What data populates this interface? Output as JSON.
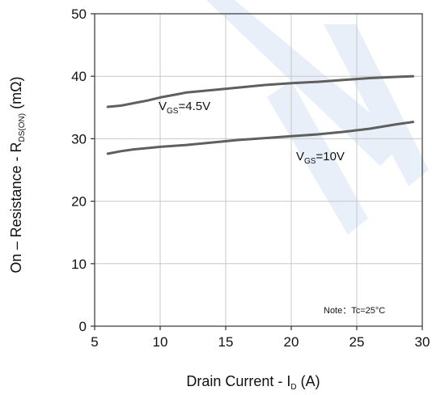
{
  "chart_data": {
    "type": "line",
    "xlabel": {
      "main": "Drain Current - I",
      "sub": "D",
      "unit": " (A)"
    },
    "ylabel": {
      "main": "On – Resistance - R",
      "sub": "DS(ON)",
      "unit": " (mΩ)"
    },
    "xlim": [
      5,
      30
    ],
    "ylim": [
      0,
      50
    ],
    "x_ticks": [
      5,
      10,
      15,
      20,
      25,
      30
    ],
    "y_ticks": [
      0,
      10,
      20,
      30,
      40,
      50
    ],
    "grid": true,
    "series": [
      {
        "label": {
          "prefix": "V",
          "sub": "GS",
          "suffix": "=4.5V"
        },
        "color": "#5f5f5f",
        "x": [
          6,
          7,
          8,
          9,
          10,
          11,
          12,
          14,
          16,
          18,
          20,
          22,
          24,
          26,
          28,
          29.3
        ],
        "y": [
          35.1,
          35.3,
          35.7,
          36.1,
          36.6,
          37.0,
          37.4,
          37.8,
          38.2,
          38.6,
          38.9,
          39.1,
          39.4,
          39.7,
          39.9,
          40.0
        ]
      },
      {
        "label": {
          "prefix": "V",
          "sub": "GS",
          "suffix": "=10V"
        },
        "color": "#5f5f5f",
        "x": [
          6,
          7,
          8,
          9,
          10,
          12,
          14,
          16,
          18,
          20,
          22,
          24,
          26,
          28,
          29.3
        ],
        "y": [
          27.6,
          28.0,
          28.3,
          28.5,
          28.7,
          29.0,
          29.4,
          29.8,
          30.1,
          30.4,
          30.7,
          31.1,
          31.6,
          32.3,
          32.7
        ]
      }
    ],
    "note": "Note：Tc=25°C"
  }
}
